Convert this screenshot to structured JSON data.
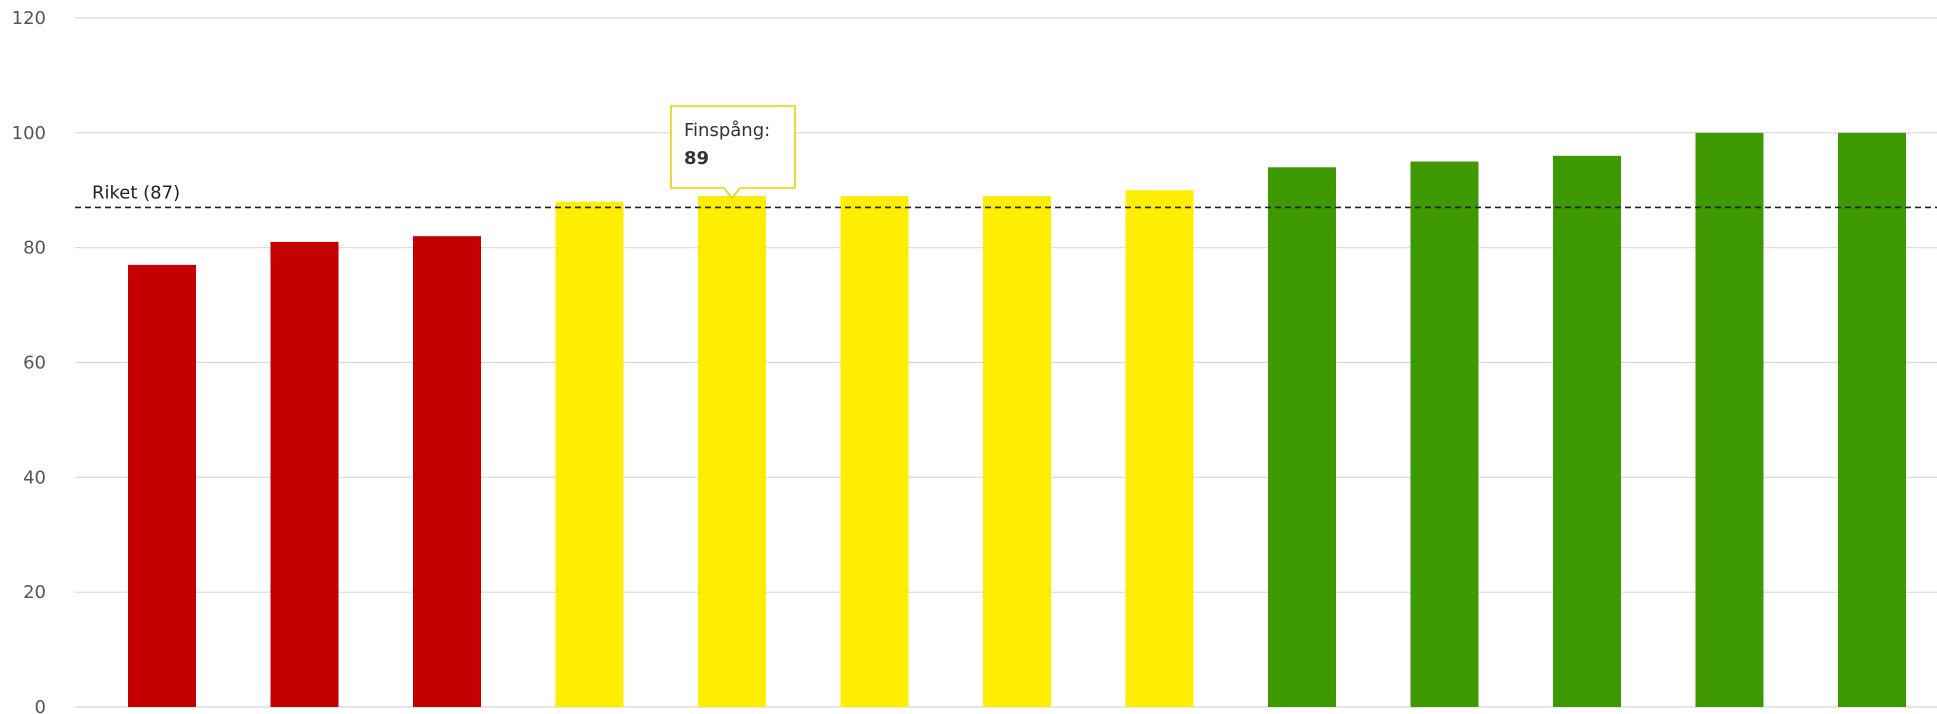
{
  "chart_data": {
    "type": "bar",
    "values": [
      77,
      81,
      82,
      88,
      89,
      89,
      89,
      90,
      94,
      95,
      96,
      100,
      100
    ],
    "bar_colors": [
      "#c40000",
      "#c40000",
      "#c40000",
      "#ffee00",
      "#ffee00",
      "#ffee00",
      "#ffee00",
      "#ffee00",
      "#3f9900",
      "#3f9900",
      "#3f9900",
      "#3f9900",
      "#3f9900"
    ],
    "ylim": [
      0,
      120
    ],
    "yticks": [
      "0",
      "20",
      "40",
      "60",
      "80",
      "100",
      "120"
    ],
    "grid": true,
    "reference_line": {
      "label": "Riket (87)",
      "value": 87
    },
    "tooltip": {
      "bar_index": 4,
      "name": "Finspång:",
      "value": "89"
    }
  }
}
